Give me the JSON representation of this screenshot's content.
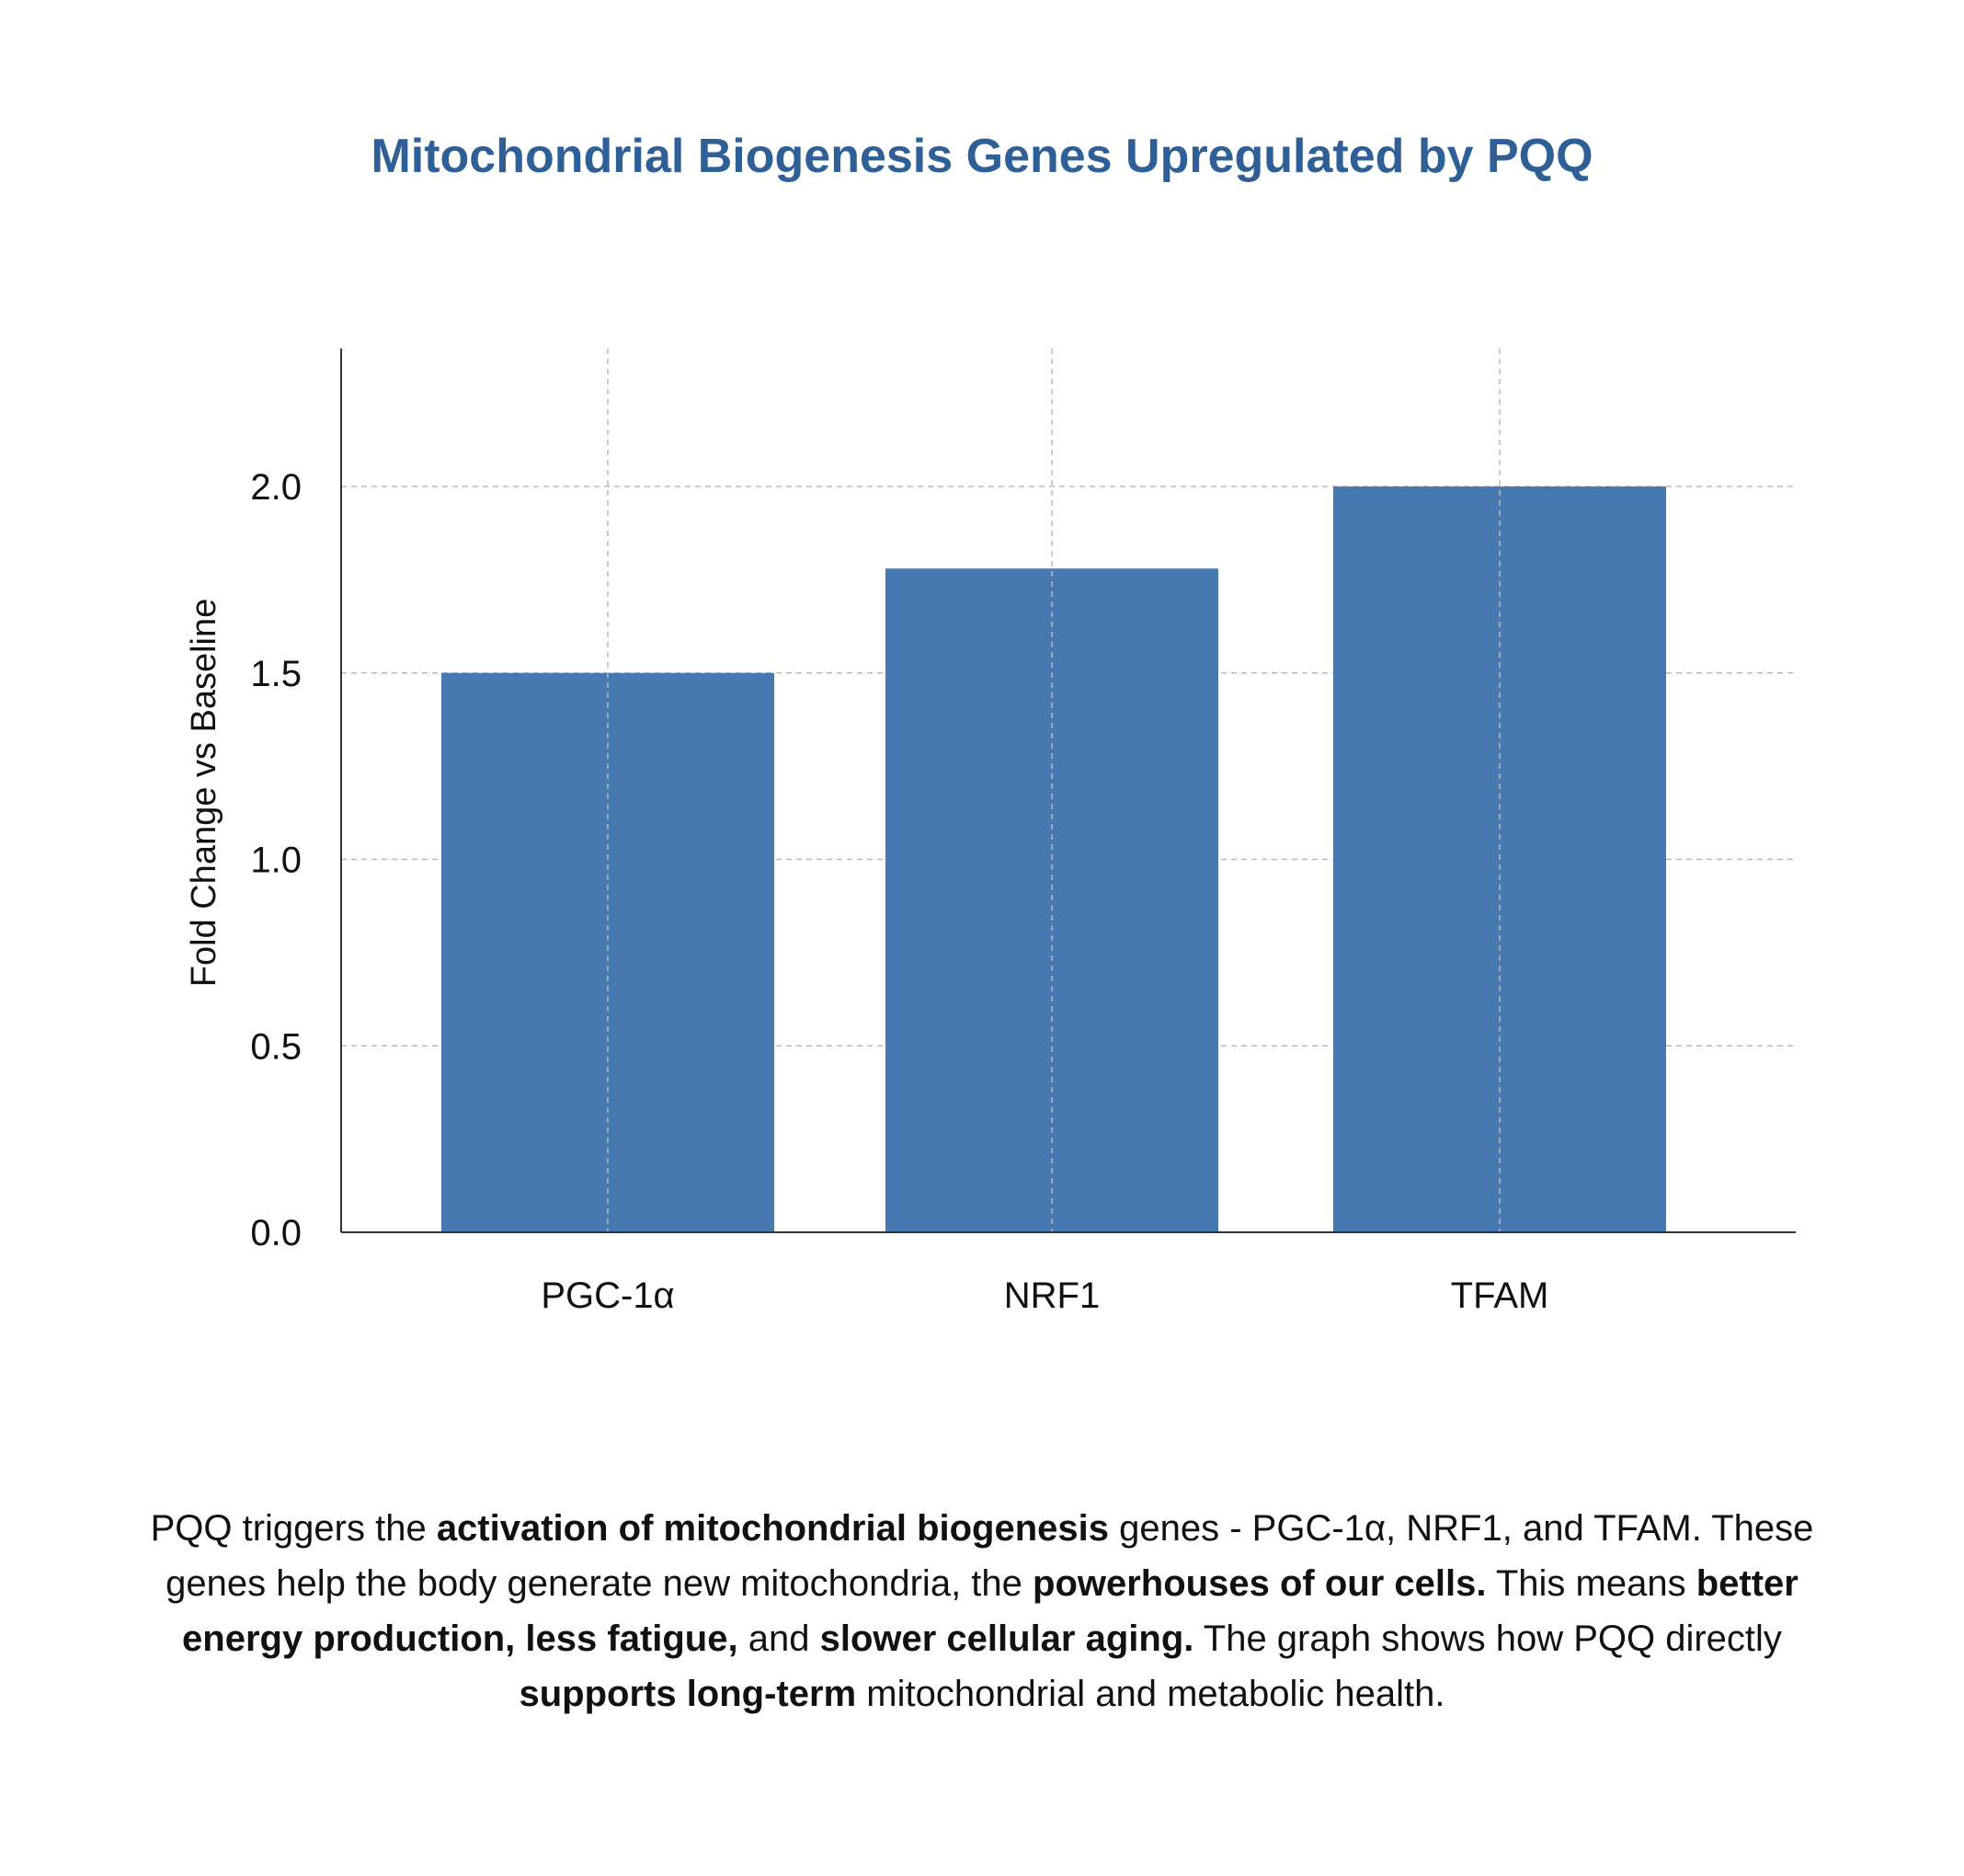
{
  "chart_data": {
    "type": "bar",
    "title": "Mitochondrial Biogenesis Genes Upregulated by PQQ",
    "categories": [
      "PGC-1α",
      "NRF1",
      "TFAM"
    ],
    "values": [
      1.5,
      1.78,
      2.0
    ],
    "xlabel": "",
    "ylabel": "Fold Change vs Baseline",
    "ylim": [
      0,
      2.37
    ],
    "yticks": [
      "0.0",
      "0.5",
      "1.0",
      "1.5",
      "2.0"
    ],
    "grid": true,
    "colors": {
      "bar": "#4679b0",
      "title": "#2e5f97",
      "grid": "#bbbbbb"
    }
  },
  "caption": {
    "segments": [
      {
        "text": "PQQ triggers the ",
        "bold": false
      },
      {
        "text": "activation of mitochondrial biogenesis",
        "bold": true
      },
      {
        "text": " genes - PGC-1α, NRF1, and TFAM. These genes help the body generate new mitochondria, the ",
        "bold": false
      },
      {
        "text": "powerhouses of our cells.",
        "bold": true
      },
      {
        "text": " This means ",
        "bold": false
      },
      {
        "text": "better energy production, less fatigue,",
        "bold": true
      },
      {
        "text": " and ",
        "bold": false
      },
      {
        "text": "slower cellular aging.",
        "bold": true
      },
      {
        "text": " The graph shows how PQQ directly ",
        "bold": false
      },
      {
        "text": "supports long-term",
        "bold": true
      },
      {
        "text": " mitochondrial and metabolic health.",
        "bold": false
      }
    ]
  }
}
